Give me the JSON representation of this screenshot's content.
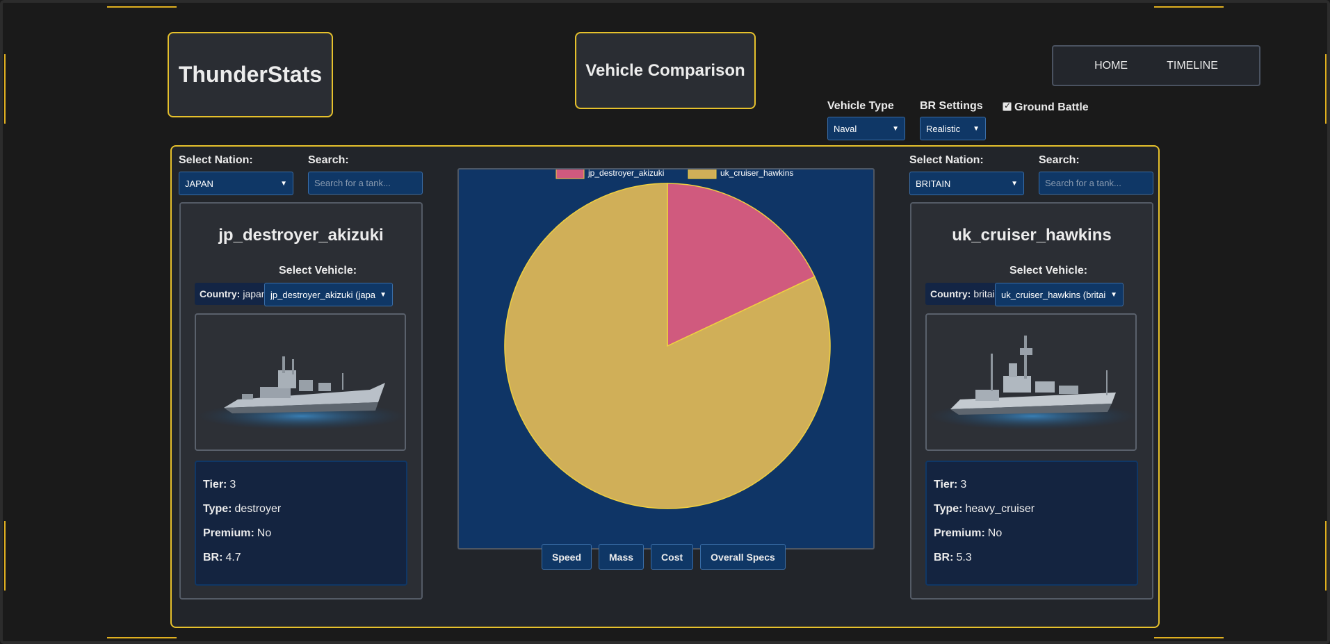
{
  "header": {
    "logo": "ThunderStats",
    "page_title": "Vehicle Comparison",
    "nav": [
      "HOME",
      "TIMELINE"
    ]
  },
  "settings": {
    "vehicle_type_label": "Vehicle Type",
    "vehicle_type_value": "Naval",
    "br_label": "BR Settings",
    "br_value": "Realistic",
    "ground_battle_label": "Ground Battle",
    "ground_battle_checked": true
  },
  "left": {
    "nation_label": "Select Nation:",
    "nation_value": "JAPAN",
    "search_label": "Search:",
    "search_placeholder": "Search for a tank...",
    "vehicle_name": "jp_destroyer_akizuki",
    "select_vehicle_label": "Select Vehicle:",
    "country_key": "Country:",
    "country_value": "japan",
    "vehicle_select_value": "jp_destroyer_akizuki (japan)",
    "stats": {
      "tier_key": "Tier:",
      "tier": "3",
      "type_key": "Type:",
      "type": "destroyer",
      "premium_key": "Premium:",
      "premium": "No",
      "br_key": "BR:",
      "br": "4.7"
    }
  },
  "right": {
    "nation_label": "Select Nation:",
    "nation_value": "BRITAIN",
    "search_label": "Search:",
    "search_placeholder": "Search for a tank...",
    "vehicle_name": "uk_cruiser_hawkins",
    "select_vehicle_label": "Select Vehicle:",
    "country_key": "Country:",
    "country_value": "britain",
    "vehicle_select_value": "uk_cruiser_hawkins (britain)",
    "stats": {
      "tier_key": "Tier:",
      "tier": "3",
      "type_key": "Type:",
      "type": "heavy_cruiser",
      "premium_key": "Premium:",
      "premium": "No",
      "br_key": "BR:",
      "br": "5.3"
    }
  },
  "chart_data": {
    "type": "pie",
    "categories": [
      "jp_destroyer_akizuki",
      "uk_cruiser_hawkins"
    ],
    "values": [
      18,
      82
    ],
    "colors": [
      "#d05a7e",
      "#d0af58"
    ],
    "legend_position": "top"
  },
  "chart_buttons": [
    "Speed",
    "Mass",
    "Cost",
    "Overall Specs"
  ],
  "colors": {
    "accent": "#e6c12c",
    "select_bg": "#0f3766",
    "chart_bg": "#0f3566"
  }
}
